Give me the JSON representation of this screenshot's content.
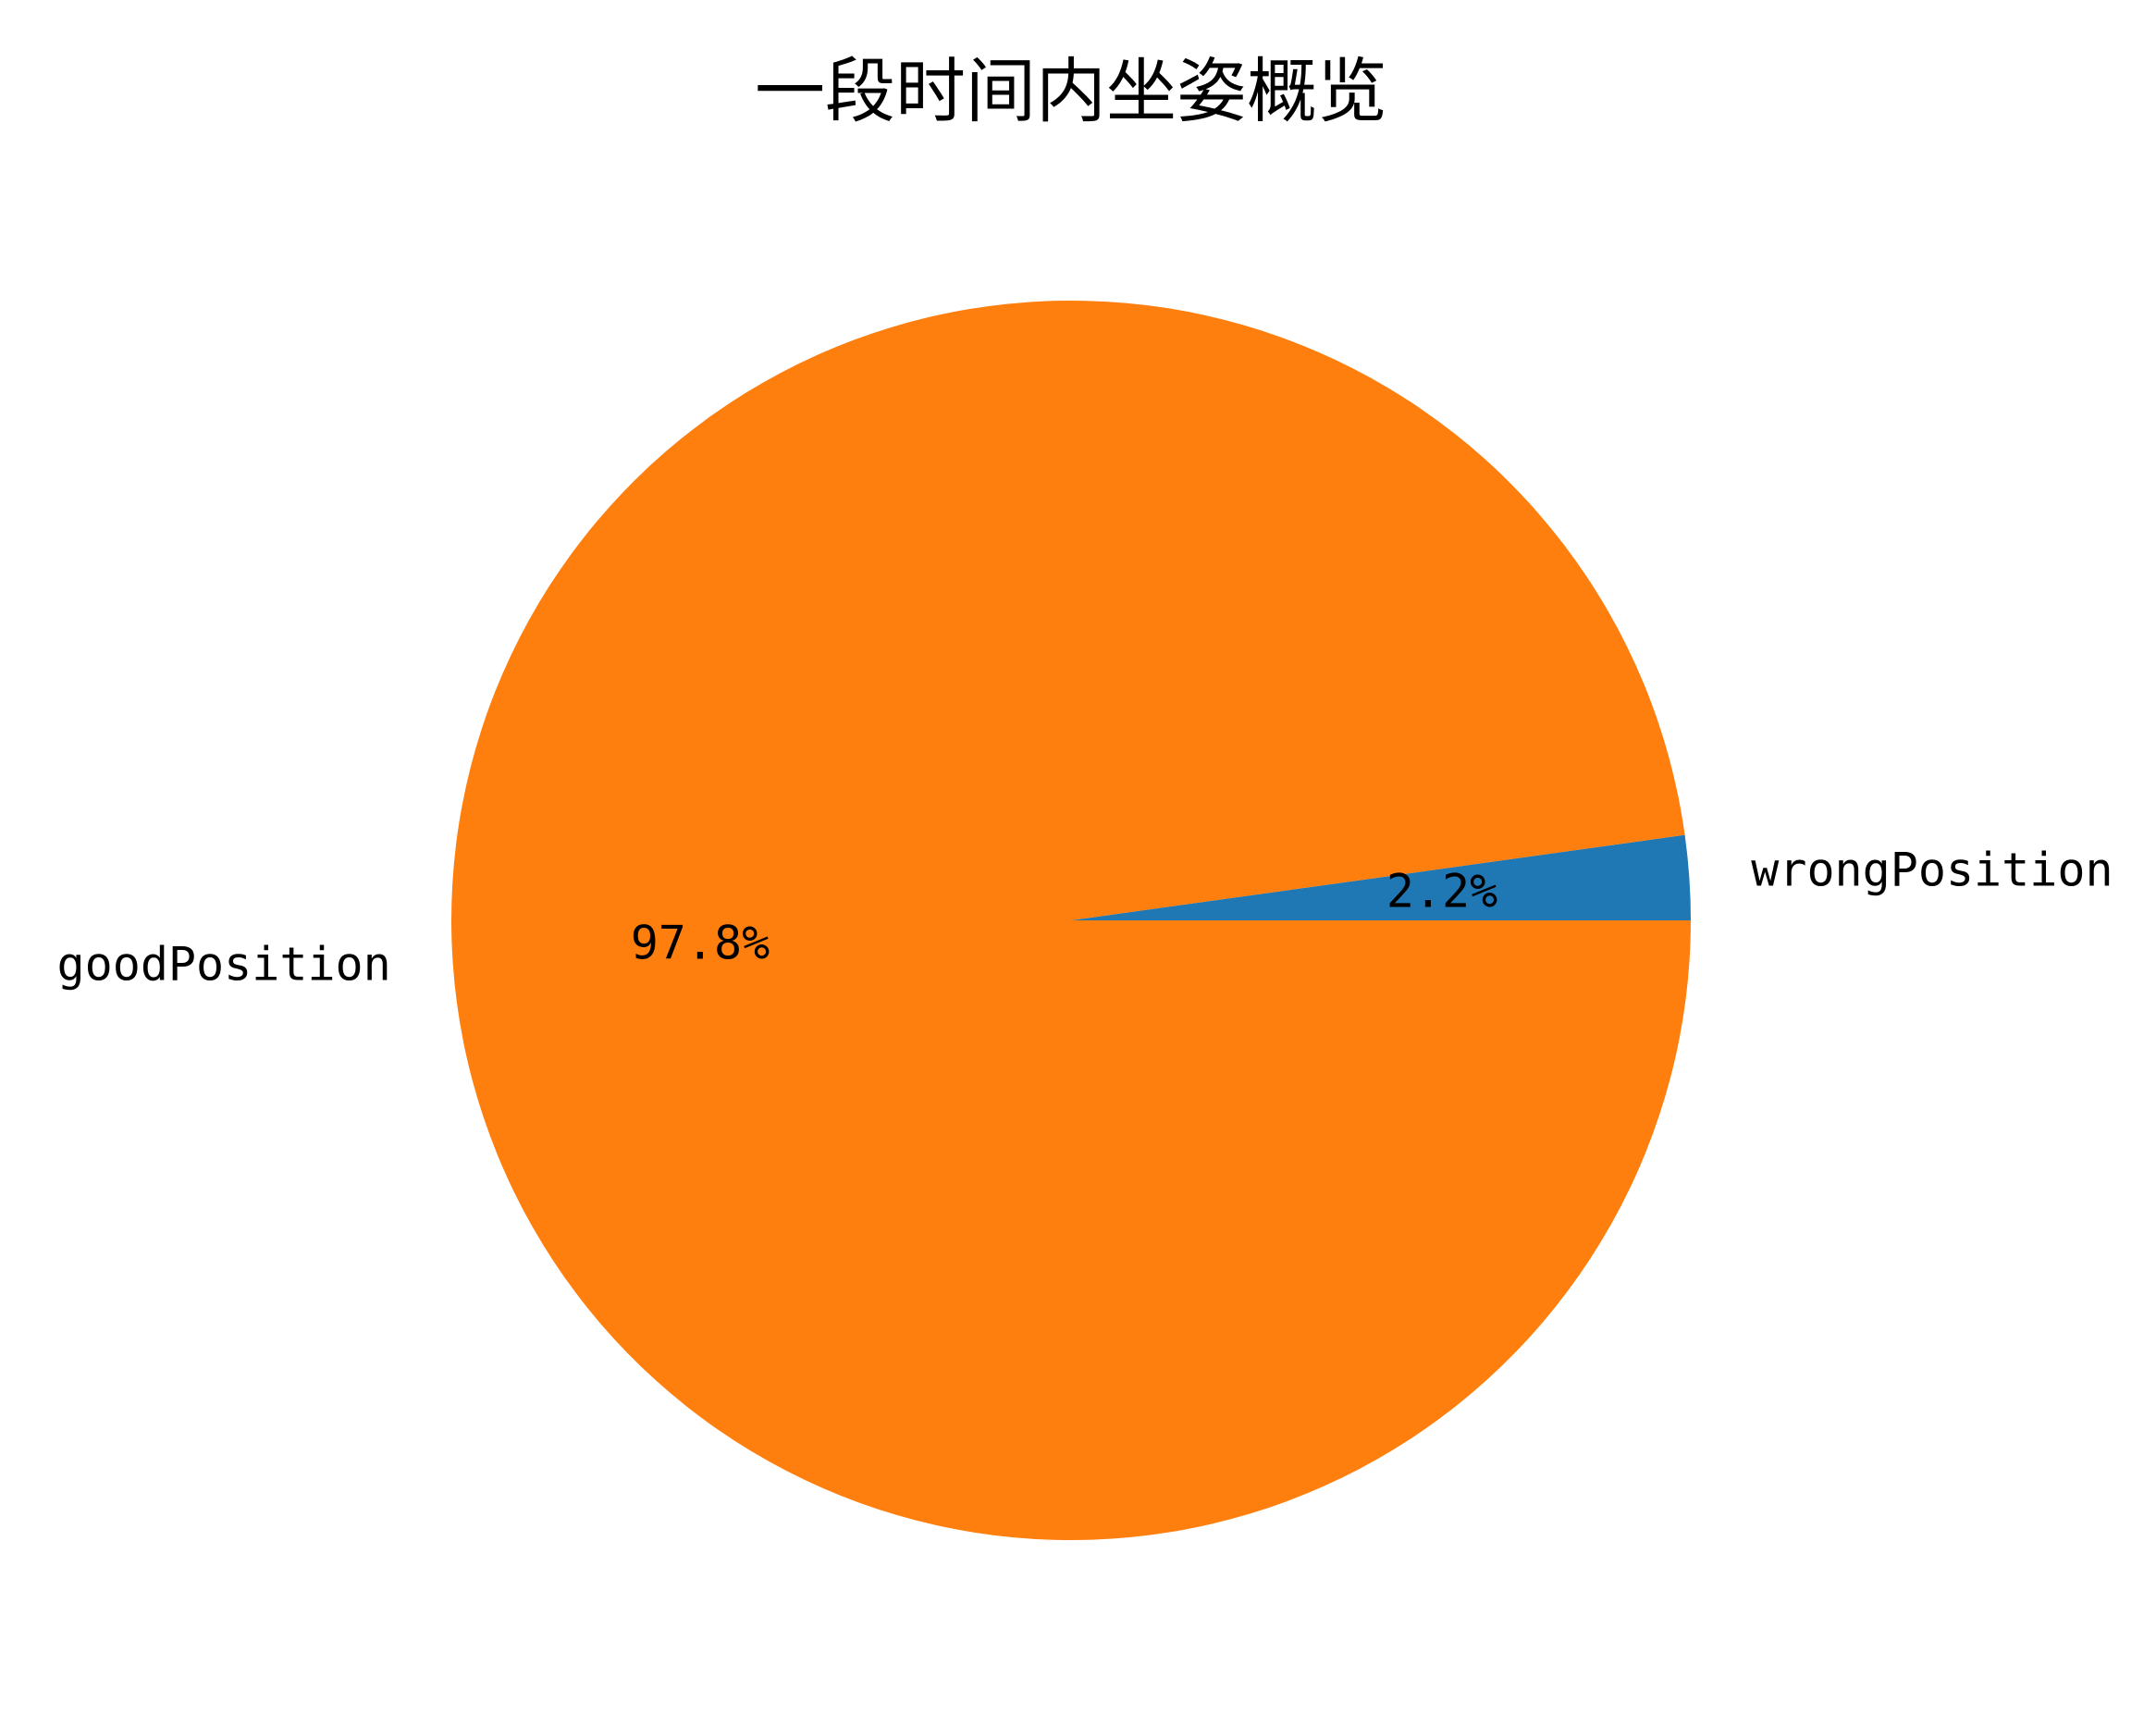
{
  "chart_data": {
    "type": "pie",
    "title": "一段时间内坐姿概览",
    "categories": [
      "wrongPosition",
      "goodPosition"
    ],
    "values": [
      2.2,
      97.8
    ],
    "value_labels": [
      "2.2%",
      "97.8%"
    ],
    "colors": [
      "#1f77b4",
      "#ff7f0e"
    ],
    "start_angle": 0,
    "direction": "counterclockwise"
  }
}
